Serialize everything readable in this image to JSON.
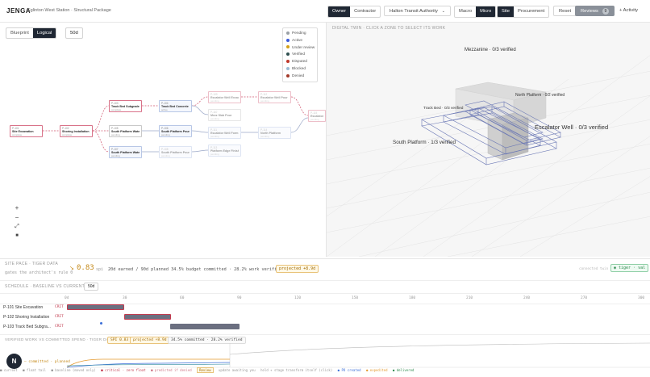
{
  "header": {
    "brand": "JENGA",
    "breadcrumb": "Eglinton West Station · Structural Package",
    "role_tabs": [
      "Owner",
      "Contractor"
    ],
    "authority": "Halton Transit Authority",
    "scope_tabs": [
      "Macro",
      "Micro"
    ],
    "view_tabs": [
      "Site",
      "Procurement"
    ],
    "reset": "Reset",
    "reviews": "Reviews",
    "reviews_count": "9",
    "activity": "+ Activity"
  },
  "canvas": {
    "view_tabs": [
      "Blueprint",
      "Logical"
    ],
    "days": "50d",
    "legend": [
      {
        "label": "Pending",
        "color": "#9aa0a6"
      },
      {
        "label": "Active",
        "color": "#3b5bdb"
      },
      {
        "label": "Under review",
        "color": "#d4a017"
      },
      {
        "label": "Verified",
        "color": "#2f4f4f"
      },
      {
        "label": "Disputed",
        "color": "#c0392b"
      },
      {
        "label": "Blocked",
        "color": "#9bbbd4"
      },
      {
        "label": "Denied",
        "color": "#a33a2a"
      }
    ],
    "nodes": [
      {
        "id": "P-101",
        "title": "Site Excavation",
        "sub": "complete"
      },
      {
        "id": "P-102",
        "title": "Shoring Installation",
        "sub": "complete"
      },
      {
        "id": "P-103",
        "title": "Track Bed Subgrade",
        "sub": "complete"
      },
      {
        "id": "P-104",
        "title": "Track Bed Concrete Pour",
        "sub": "active"
      },
      {
        "id": "P-105",
        "title": "South Platform Waterp",
        "sub": "pending"
      },
      {
        "id": "P-106",
        "title": "South Platform Pour",
        "sub": "pending"
      },
      {
        "id": "P-107",
        "title": "South Platform Waterp",
        "sub": "pending"
      },
      {
        "id": "P-108",
        "title": "South Platform Pour",
        "sub": "pending"
      },
      {
        "id": "P-109",
        "title": "Escalator Well Excav",
        "sub": "pending"
      },
      {
        "id": "P-110",
        "title": "Mezz Slab Pour",
        "sub": "pending"
      },
      {
        "id": "P-111",
        "title": "Escalator Well Form",
        "sub": "pending"
      },
      {
        "id": "P-112",
        "title": "Escalator Well Pour",
        "sub": "pending"
      },
      {
        "id": "P-113",
        "title": "Platform Edge Finishing",
        "sub": "pending"
      },
      {
        "id": "P-114",
        "title": "North Platform",
        "sub": "pending"
      },
      {
        "id": "P-115",
        "title": "Escalator Install",
        "sub": "pending"
      }
    ],
    "zoom": [
      "+",
      "−",
      "⤢",
      "■"
    ]
  },
  "twin": {
    "label": "DIGITAL TWIN · CLICK A ZONE TO SELECT ITS WORK",
    "zones": {
      "mezzanine": "Mezzanine · 0/3 verified",
      "north": "North Platform · 0/2 verified",
      "trackbed": "Track Bed · 0/3 verified",
      "escalator": "Escalator Well · 0/3 verified",
      "south": "South Platform · 1/3 verified"
    }
  },
  "pace": {
    "title": "SITE PACE · TIGER DATA",
    "sub": "gates the architect's rule 0",
    "arrow": "↘",
    "value": "0.83",
    "unit": "spi",
    "stats": "20d earned / 90d planned   34.5% budget committed · 28.2% work verified",
    "projected": "projected +8.9d",
    "hint": "connected twin",
    "tier": "◉ tiger · val"
  },
  "schedule": {
    "title": "SCHEDULE · BASELINE VS CURRENT",
    "days": "50d",
    "ticks": [
      "0d",
      "30",
      "60",
      "90",
      "120",
      "150",
      "180",
      "210",
      "240",
      "270",
      "300"
    ],
    "rows": [
      {
        "id": "P-101",
        "label": "Site Excavation",
        "crit": "CRIT"
      },
      {
        "id": "P-102",
        "label": "Shoring Installation",
        "crit": "CRIT"
      },
      {
        "id": "P-103",
        "label": "Track Bed Subgra...",
        "crit": "CRIT"
      }
    ]
  },
  "verified": {
    "title": "VERIFIED WORK VS COMMITTED SPEND · TIGER DATA",
    "spi": "SPI 0.83",
    "projected": "projected +8.9d",
    "budget": "34.5% committed · 28.2% verified",
    "curve_label": "— committed · planned"
  },
  "footer": [
    "■ current",
    "■ float tail",
    "■ baseline (moved only)",
    "■ critical · zero float",
    "■ predicted if denied",
    "Review",
    "update awaiting you",
    "hold + stage transform itself (click)",
    "● PO created",
    "● expedited",
    "● delivered"
  ],
  "fab": "N"
}
